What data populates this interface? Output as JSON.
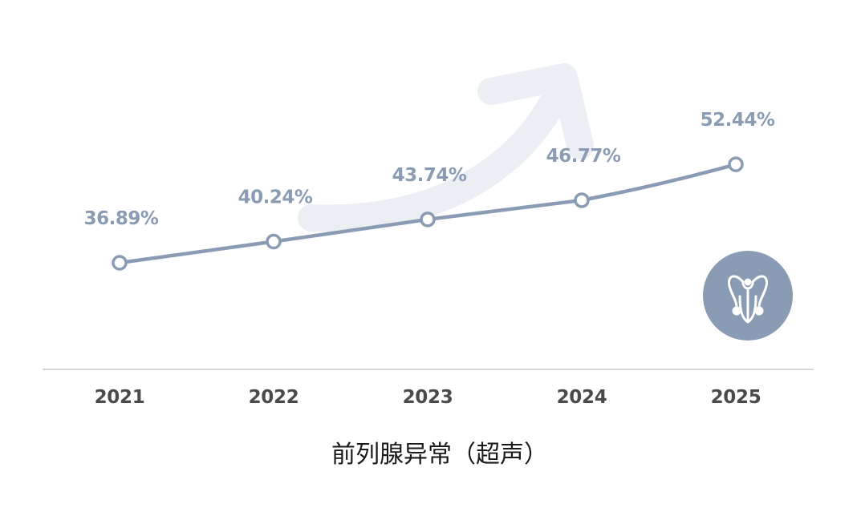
{
  "colors": {
    "line": "#8a9bb4",
    "label": "#8a9bb4",
    "tick": "#4a4a4a",
    "axis": "#d8d8d8",
    "arrow": "#ebeef3",
    "marker_fill": "#ffffff",
    "icon_bg": "#8a9bb4",
    "caption": "#1a1a1a"
  },
  "icon": {
    "name": "prostate-organ-icon"
  },
  "chart_data": {
    "type": "line",
    "caption": "前列腺异常（超声）",
    "categories": [
      "2021",
      "2022",
      "2023",
      "2024",
      "2025"
    ],
    "values": [
      36.89,
      40.24,
      43.74,
      46.77,
      52.44
    ],
    "labels": [
      "36.89%",
      "40.24%",
      "43.74%",
      "46.77%",
      "52.44%"
    ],
    "unit": "%",
    "ylim": [
      20,
      60
    ],
    "grid": false,
    "legend": "none",
    "decorations": [
      "upward-trend-arrow"
    ]
  }
}
